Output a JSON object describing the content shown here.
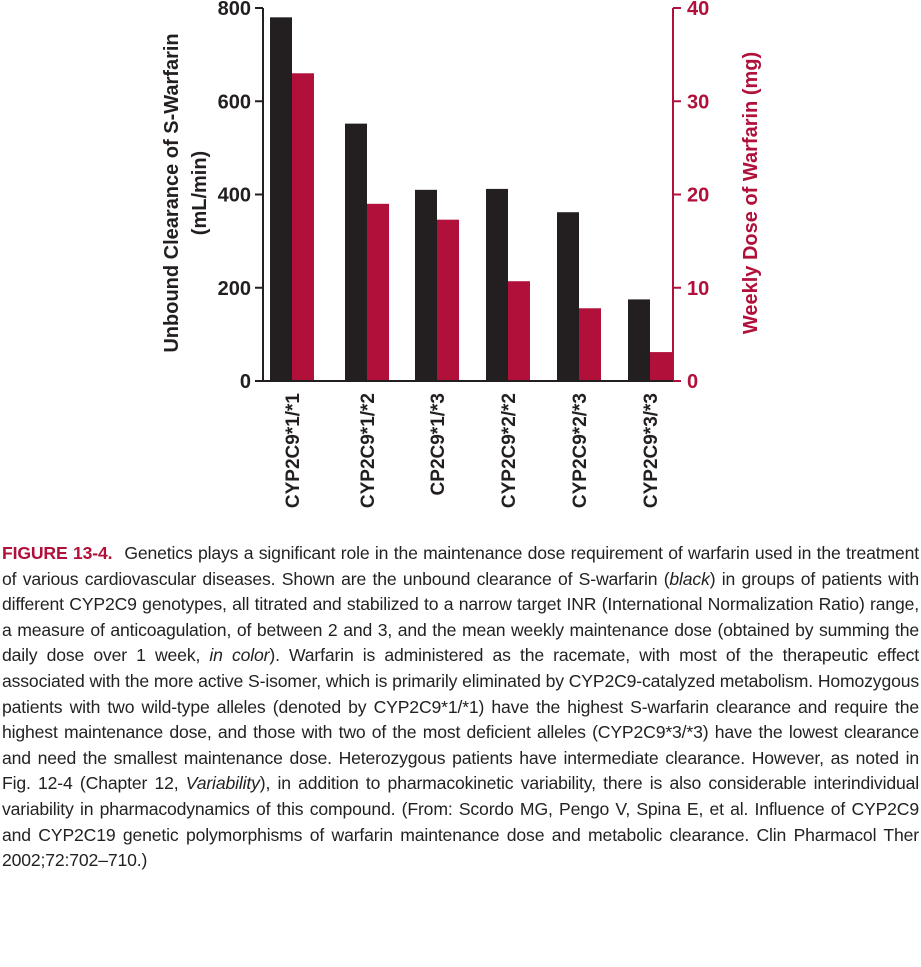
{
  "chart_data": {
    "type": "bar",
    "categories": [
      "CYP2C9*1/*1",
      "CYP2C9*1/*2",
      "CP2C9*1/*3",
      "CYP2C9*2/*2",
      "CYP2C9*2/*3",
      "CYP2C9*3/*3"
    ],
    "series": [
      {
        "values": [
          780,
          552,
          410,
          412,
          362,
          175
        ],
        "axis": "left",
        "color": "#231f20"
      },
      {
        "values": [
          33,
          19,
          17.3,
          10.7,
          7.8,
          3.1
        ],
        "axis": "right",
        "color": "#b0103a"
      }
    ],
    "left_axis": {
      "label_line1": "Unbound Clearance of S-Warfarin",
      "label_line2": "(mL/min)",
      "ylim": [
        0,
        800
      ],
      "ticks": [
        "0",
        "200",
        "400",
        "600",
        "800"
      ]
    },
    "right_axis": {
      "label": "Weekly Dose of Warfarin (mg)",
      "ylim": [
        0,
        40
      ],
      "ticks": [
        "0",
        "10",
        "20",
        "30",
        "40"
      ],
      "color": "#b0103a"
    },
    "grid": false
  },
  "caption": {
    "label": "FIGURE 13-4.",
    "p1": "Genetics plays a significant role in the maintenance dose requirement of warfarin used in the treatment of various cardiovascular diseases. Shown are the unbound clearance of S-warfarin (",
    "i1": "black",
    "p2": ") in groups of patients with different CYP2C9 genotypes, all titrated and stabilized to a narrow target INR (International Normalization Ratio) range, a measure of anticoagulation, of between 2 and 3, and the mean weekly maintenance dose (obtained by summing the daily dose over 1 week, ",
    "i2": "in color",
    "p3": "). Warfarin is administered as the racemate, with most of the therapeutic effect associated with the more active S-isomer, which is primarily eliminated by CYP2C9-catalyzed metabolism. Homozygous patients with two wild-type alleles (denoted by CYP2C9*1/*1) have the highest S-warfarin clearance and require the highest maintenance dose, and those with two of the most deficient alleles (CYP2C9*3/*3) have the lowest clearance and need the smallest maintenance dose. Heterozygous patients have intermediate clearance. However, as noted in Fig. 12-4 (Chapter 12, ",
    "i3": "Variability",
    "p4": "), in addition to pharmacokinetic variability, there is also considerable interindividual variability in pharmacodynamics of this compound. (From: Scordo MG, Pengo V, Spina E, et al. Influence of CYP2C9 and CYP2C19 genetic polymorphisms of warfarin maintenance dose and metabolic clearance. Clin Pharmacol Ther 2002;72:702–710.)"
  }
}
